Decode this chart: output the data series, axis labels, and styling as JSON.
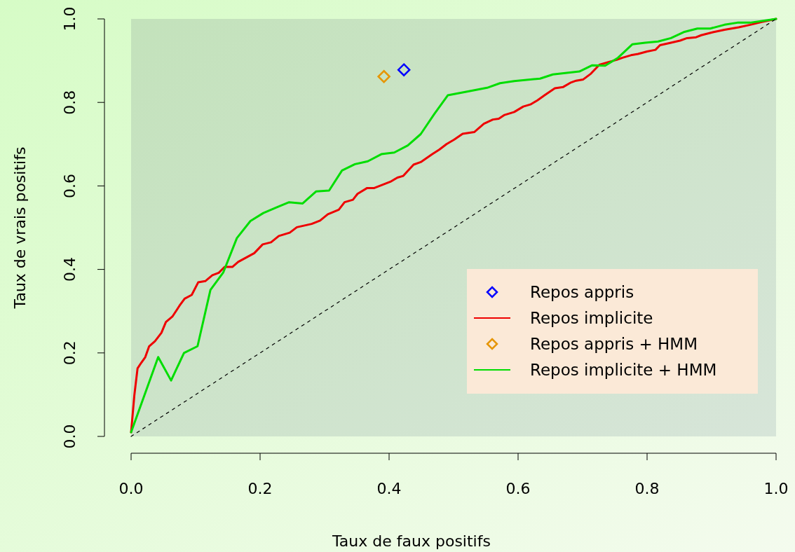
{
  "chart_data": {
    "type": "line",
    "xlabel": "Taux de faux positifs",
    "ylabel": "Taux de vrais positifs",
    "xlim": [
      0,
      1
    ],
    "ylim": [
      0,
      1
    ],
    "xticks": [
      {
        "value": 0,
        "label": "0.0"
      },
      0.2,
      0.4,
      0.6,
      0.8,
      {
        "value": 1,
        "label": "1.0"
      }
    ],
    "yticks": [
      {
        "value": 0,
        "label": "0.0"
      },
      0.2,
      0.4,
      0.6,
      0.8,
      {
        "value": 1,
        "label": "1.0"
      }
    ],
    "grid": false,
    "legend": "bottom right",
    "series": [
      {
        "name": "Repos appris",
        "type": "scatter",
        "marker": "diamond",
        "color": "#0000ff",
        "x": [
          0.423
        ],
        "values": [
          0.878
        ]
      },
      {
        "name": "Repos implicite",
        "marker": "none",
        "color": "#ee0000",
        "x": [
          0,
          0.005,
          0.01,
          0.016,
          0.022,
          0.028,
          0.037,
          0.047,
          0.054,
          0.064,
          0.075,
          0.083,
          0.094,
          0.104,
          0.115,
          0.126,
          0.136,
          0.145,
          0.157,
          0.166,
          0.179,
          0.191,
          0.204,
          0.217,
          0.229,
          0.246,
          0.257,
          0.28,
          0.293,
          0.305,
          0.322,
          0.331,
          0.344,
          0.351,
          0.366,
          0.377,
          0.402,
          0.413,
          0.422,
          0.438,
          0.449,
          0.467,
          0.478,
          0.489,
          0.501,
          0.514,
          0.532,
          0.547,
          0.561,
          0.57,
          0.579,
          0.594,
          0.608,
          0.619,
          0.63,
          0.641,
          0.657,
          0.67,
          0.681,
          0.69,
          0.701,
          0.713,
          0.726,
          0.741,
          0.753,
          0.762,
          0.775,
          0.786,
          0.8,
          0.813,
          0.82,
          0.837,
          0.851,
          0.862,
          0.876,
          0.884,
          0.902,
          0.92,
          0.942,
          0.96,
          0.978,
          1
        ],
        "values": [
          0.01,
          0.098,
          0.163,
          0.177,
          0.19,
          0.216,
          0.228,
          0.248,
          0.274,
          0.287,
          0.313,
          0.33,
          0.339,
          0.369,
          0.372,
          0.386,
          0.392,
          0.406,
          0.406,
          0.418,
          0.429,
          0.439,
          0.46,
          0.465,
          0.48,
          0.488,
          0.501,
          0.509,
          0.517,
          0.532,
          0.543,
          0.561,
          0.567,
          0.581,
          0.595,
          0.595,
          0.61,
          0.62,
          0.624,
          0.651,
          0.657,
          0.676,
          0.687,
          0.7,
          0.711,
          0.725,
          0.729,
          0.749,
          0.759,
          0.761,
          0.77,
          0.777,
          0.79,
          0.795,
          0.805,
          0.817,
          0.834,
          0.837,
          0.847,
          0.852,
          0.855,
          0.869,
          0.89,
          0.897,
          0.902,
          0.907,
          0.913,
          0.916,
          0.922,
          0.926,
          0.937,
          0.943,
          0.948,
          0.954,
          0.956,
          0.961,
          0.968,
          0.974,
          0.98,
          0.986,
          0.993,
          1
        ]
      },
      {
        "name": "Repos appris + HMM",
        "type": "scatter",
        "marker": "diamond",
        "color": "#e69500",
        "x": [
          0.392
        ],
        "values": [
          0.862
        ]
      },
      {
        "name": "Repos implicite + HMM",
        "marker": "none",
        "color": "#00dd00",
        "x": [
          0,
          0.042,
          0.062,
          0.082,
          0.103,
          0.123,
          0.143,
          0.164,
          0.185,
          0.205,
          0.226,
          0.245,
          0.266,
          0.287,
          0.307,
          0.327,
          0.347,
          0.367,
          0.388,
          0.408,
          0.429,
          0.449,
          0.47,
          0.491,
          0.521,
          0.552,
          0.572,
          0.594,
          0.634,
          0.654,
          0.695,
          0.715,
          0.735,
          0.755,
          0.777,
          0.797,
          0.817,
          0.837,
          0.858,
          0.878,
          0.898,
          0.92,
          0.94,
          0.96,
          1
        ],
        "values": [
          0.01,
          0.19,
          0.134,
          0.2,
          0.216,
          0.351,
          0.393,
          0.475,
          0.516,
          0.535,
          0.549,
          0.561,
          0.558,
          0.587,
          0.589,
          0.637,
          0.652,
          0.659,
          0.676,
          0.68,
          0.697,
          0.724,
          0.772,
          0.817,
          0.826,
          0.835,
          0.846,
          0.851,
          0.857,
          0.867,
          0.874,
          0.889,
          0.888,
          0.907,
          0.939,
          0.943,
          0.946,
          0.954,
          0.969,
          0.977,
          0.977,
          0.986,
          0.991,
          0.991,
          1
        ]
      },
      {
        "marker": "none",
        "line_style": "dashed",
        "color": "#000000",
        "x": [
          0,
          1
        ],
        "values": [
          0,
          1
        ]
      }
    ]
  }
}
